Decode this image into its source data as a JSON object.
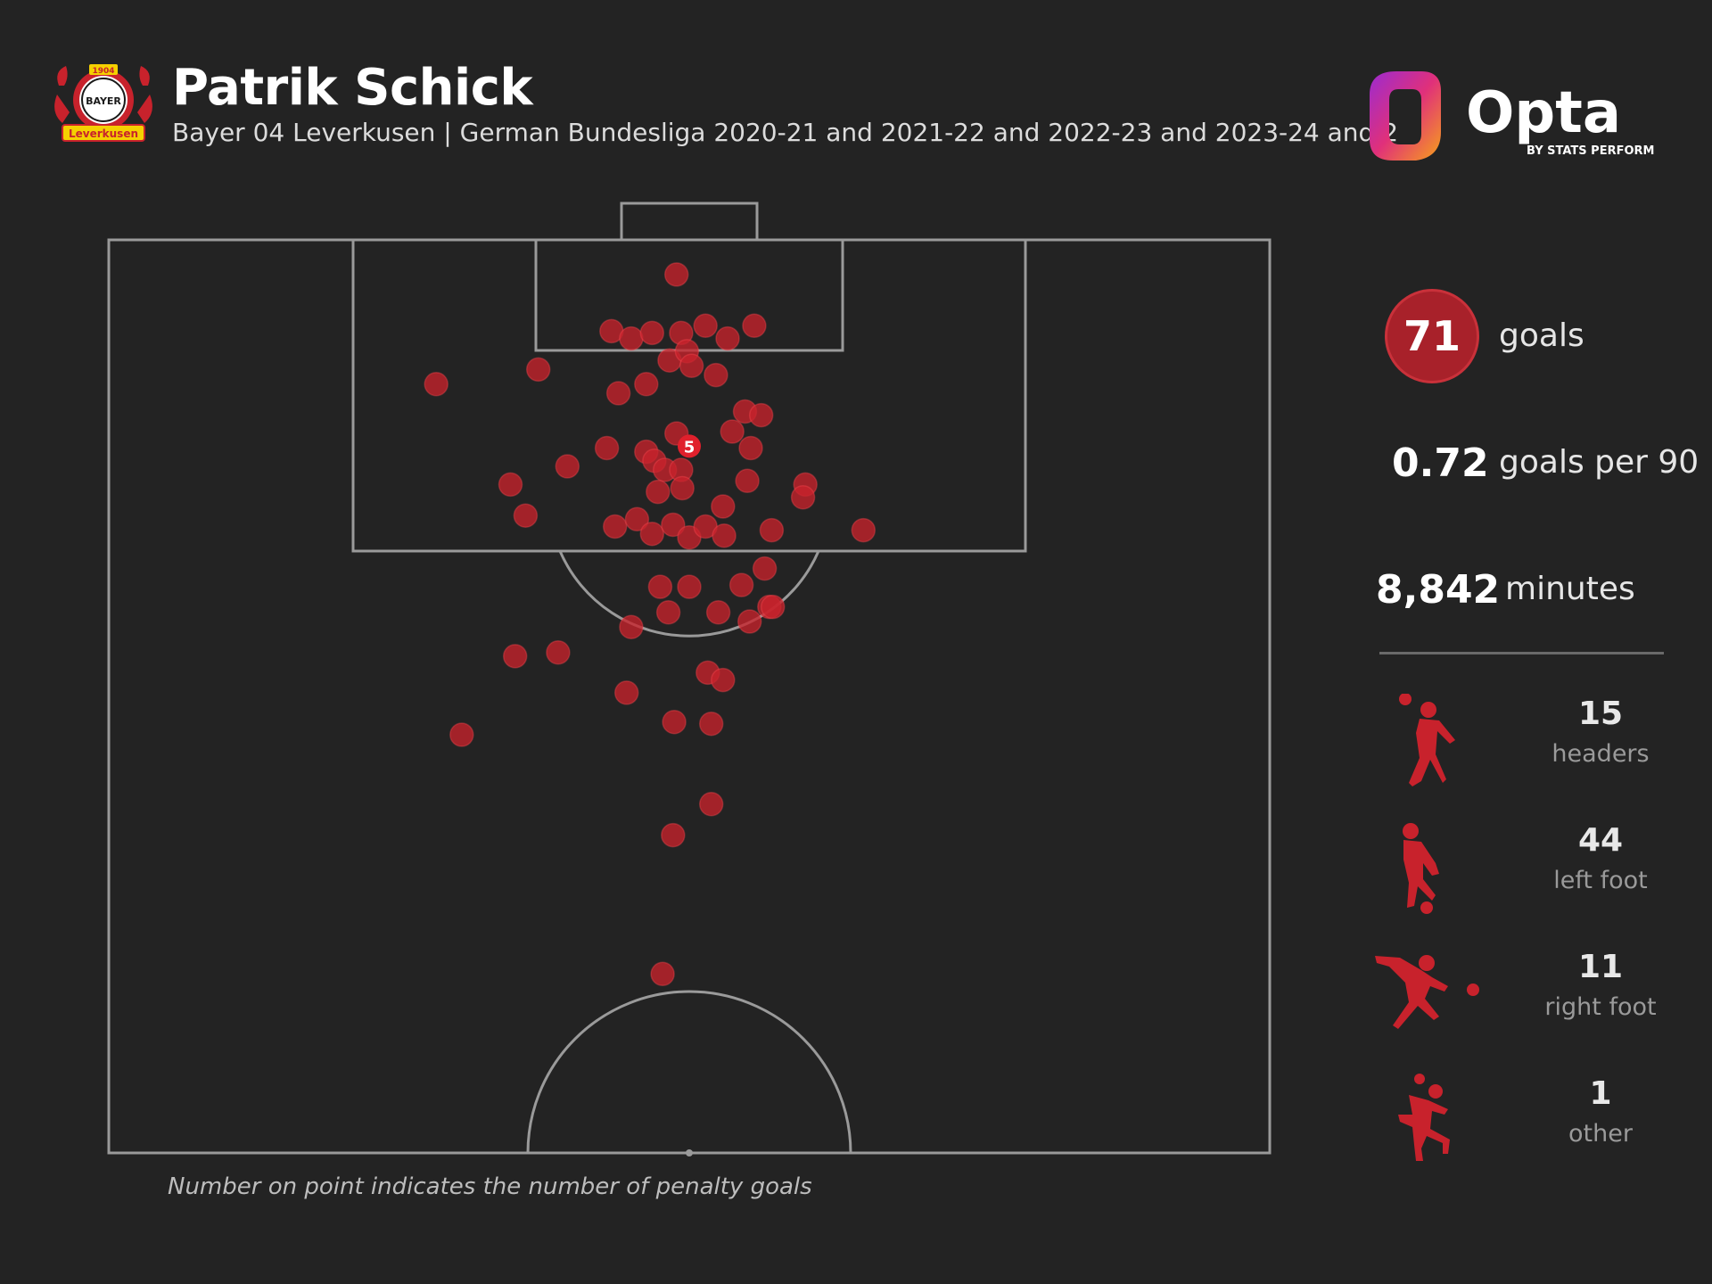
{
  "header": {
    "player_name": "Patrik Schick",
    "subtitle": "Bayer 04 Leverkusen | German Bundesliga 2020-21 and 2021-22 and 2022-23 and 2023-24 and 2",
    "club_logo": {
      "text_top": "1904",
      "text_mid": "BAYER",
      "text_bottom": "Leverkusen",
      "icon": "bayer-leverkusen-crest"
    },
    "brand_logo": {
      "name": "Opta",
      "tagline": "BY STATS PERFORM",
      "icon": "opta-logo"
    }
  },
  "stats": {
    "goals_value": "71",
    "goals_label": "goals",
    "gp90_value": "0.72",
    "gp90_label": "goals per 90",
    "minutes_value": "8,842",
    "minutes_label": "minutes"
  },
  "goal_types": [
    {
      "value": "15",
      "label": "headers",
      "icon": "header-silhouette-icon"
    },
    {
      "value": "44",
      "label": "left foot",
      "icon": "left-foot-silhouette-icon"
    },
    {
      "value": "11",
      "label": "right foot",
      "icon": "right-foot-silhouette-icon"
    },
    {
      "value": "1",
      "label": "other",
      "icon": "other-silhouette-icon"
    }
  ],
  "footnote": "Number on point indicates the number of penalty goals",
  "colors": {
    "background": "#232323",
    "accent": "#c8222c",
    "pitch_lines": "#9a9a9a"
  },
  "chart_data": {
    "type": "scatter",
    "title": "Patrik Schick",
    "x_range": [
      0,
      100
    ],
    "y_range": [
      0,
      50
    ],
    "x_description": "pitch width, left to right",
    "y_description": "distance from the goal line toward halfway",
    "points": [
      [
        48.9,
        1.9
      ],
      [
        43.3,
        5.0
      ],
      [
        45.0,
        5.4
      ],
      [
        46.8,
        5.1
      ],
      [
        49.3,
        5.1
      ],
      [
        51.4,
        4.7
      ],
      [
        53.3,
        5.4
      ],
      [
        55.6,
        4.7
      ],
      [
        37.0,
        7.1
      ],
      [
        28.2,
        7.9
      ],
      [
        48.3,
        6.6
      ],
      [
        49.8,
        6.1
      ],
      [
        50.2,
        6.9
      ],
      [
        52.3,
        7.4
      ],
      [
        46.3,
        7.9
      ],
      [
        43.9,
        8.4
      ],
      [
        54.8,
        9.4
      ],
      [
        56.2,
        9.6
      ],
      [
        48.9,
        10.6
      ],
      [
        53.7,
        10.5
      ],
      [
        42.9,
        11.4
      ],
      [
        46.3,
        11.6
      ],
      [
        47.0,
        12.1
      ],
      [
        47.9,
        12.6
      ],
      [
        49.3,
        12.6
      ],
      [
        55.3,
        11.4
      ],
      [
        55.0,
        13.2
      ],
      [
        39.5,
        12.4
      ],
      [
        34.6,
        13.4
      ],
      [
        47.3,
        13.8
      ],
      [
        49.4,
        13.6
      ],
      [
        52.9,
        14.6
      ],
      [
        60.0,
        13.4
      ],
      [
        59.8,
        14.1
      ],
      [
        35.9,
        15.1
      ],
      [
        43.6,
        15.7
      ],
      [
        45.5,
        15.3
      ],
      [
        46.8,
        16.1
      ],
      [
        48.6,
        15.6
      ],
      [
        50.0,
        16.3
      ],
      [
        51.4,
        15.7
      ],
      [
        53.0,
        16.2
      ],
      [
        57.1,
        15.9
      ],
      [
        65.0,
        15.9
      ],
      [
        47.5,
        19.0
      ],
      [
        50.0,
        19.0
      ],
      [
        52.5,
        20.4
      ],
      [
        54.5,
        18.9
      ],
      [
        56.5,
        18.0
      ],
      [
        56.9,
        20.1
      ],
      [
        48.2,
        20.4
      ],
      [
        55.2,
        20.9
      ],
      [
        57.2,
        20.1
      ],
      [
        45.0,
        21.2
      ],
      [
        35.0,
        22.8
      ],
      [
        38.7,
        22.6
      ],
      [
        51.6,
        23.7
      ],
      [
        52.9,
        24.1
      ],
      [
        44.6,
        24.8
      ],
      [
        48.7,
        26.4
      ],
      [
        51.9,
        26.5
      ],
      [
        30.4,
        27.1
      ],
      [
        51.9,
        30.9
      ],
      [
        48.6,
        32.6
      ],
      [
        47.7,
        40.2
      ]
    ],
    "penalty_marker": {
      "x": 50.0,
      "y": 11.3,
      "label": "5"
    },
    "legend": "none"
  }
}
